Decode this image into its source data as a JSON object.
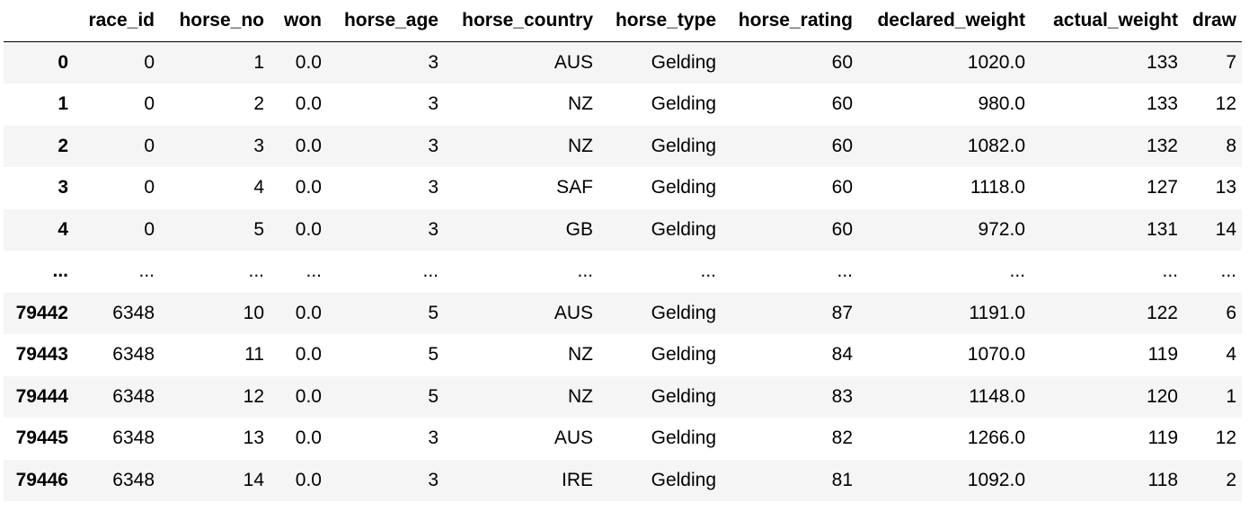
{
  "table": {
    "columns": [
      {
        "key": "race_id",
        "label": "race_id"
      },
      {
        "key": "horse_no",
        "label": "horse_no"
      },
      {
        "key": "won",
        "label": "won"
      },
      {
        "key": "horse_age",
        "label": "horse_age"
      },
      {
        "key": "horse_country",
        "label": "horse_country"
      },
      {
        "key": "horse_type",
        "label": "horse_type"
      },
      {
        "key": "horse_rating",
        "label": "horse_rating"
      },
      {
        "key": "declared_weight",
        "label": "declared_weight"
      },
      {
        "key": "actual_weight",
        "label": "actual_weight"
      },
      {
        "key": "draw",
        "label": "draw"
      }
    ],
    "rows": [
      {
        "index": "0",
        "cells": [
          "0",
          "1",
          "0.0",
          "3",
          "AUS",
          "Gelding",
          "60",
          "1020.0",
          "133",
          "7"
        ]
      },
      {
        "index": "1",
        "cells": [
          "0",
          "2",
          "0.0",
          "3",
          "NZ",
          "Gelding",
          "60",
          "980.0",
          "133",
          "12"
        ]
      },
      {
        "index": "2",
        "cells": [
          "0",
          "3",
          "0.0",
          "3",
          "NZ",
          "Gelding",
          "60",
          "1082.0",
          "132",
          "8"
        ]
      },
      {
        "index": "3",
        "cells": [
          "0",
          "4",
          "0.0",
          "3",
          "SAF",
          "Gelding",
          "60",
          "1118.0",
          "127",
          "13"
        ]
      },
      {
        "index": "4",
        "cells": [
          "0",
          "5",
          "0.0",
          "3",
          "GB",
          "Gelding",
          "60",
          "972.0",
          "131",
          "14"
        ]
      },
      {
        "index": "...",
        "cells": [
          "...",
          "...",
          "...",
          "...",
          "...",
          "...",
          "...",
          "...",
          "...",
          "..."
        ]
      },
      {
        "index": "79442",
        "cells": [
          "6348",
          "10",
          "0.0",
          "5",
          "AUS",
          "Gelding",
          "87",
          "1191.0",
          "122",
          "6"
        ]
      },
      {
        "index": "79443",
        "cells": [
          "6348",
          "11",
          "0.0",
          "5",
          "NZ",
          "Gelding",
          "84",
          "1070.0",
          "119",
          "4"
        ]
      },
      {
        "index": "79444",
        "cells": [
          "6348",
          "12",
          "0.0",
          "5",
          "NZ",
          "Gelding",
          "83",
          "1148.0",
          "120",
          "1"
        ]
      },
      {
        "index": "79445",
        "cells": [
          "6348",
          "13",
          "0.0",
          "3",
          "AUS",
          "Gelding",
          "82",
          "1266.0",
          "119",
          "12"
        ]
      },
      {
        "index": "79446",
        "cells": [
          "6348",
          "14",
          "0.0",
          "3",
          "IRE",
          "Gelding",
          "81",
          "1092.0",
          "118",
          "2"
        ]
      }
    ]
  },
  "colors": {
    "stripe": "#f5f5f5",
    "header_rule": "#000000",
    "text": "#000000"
  }
}
